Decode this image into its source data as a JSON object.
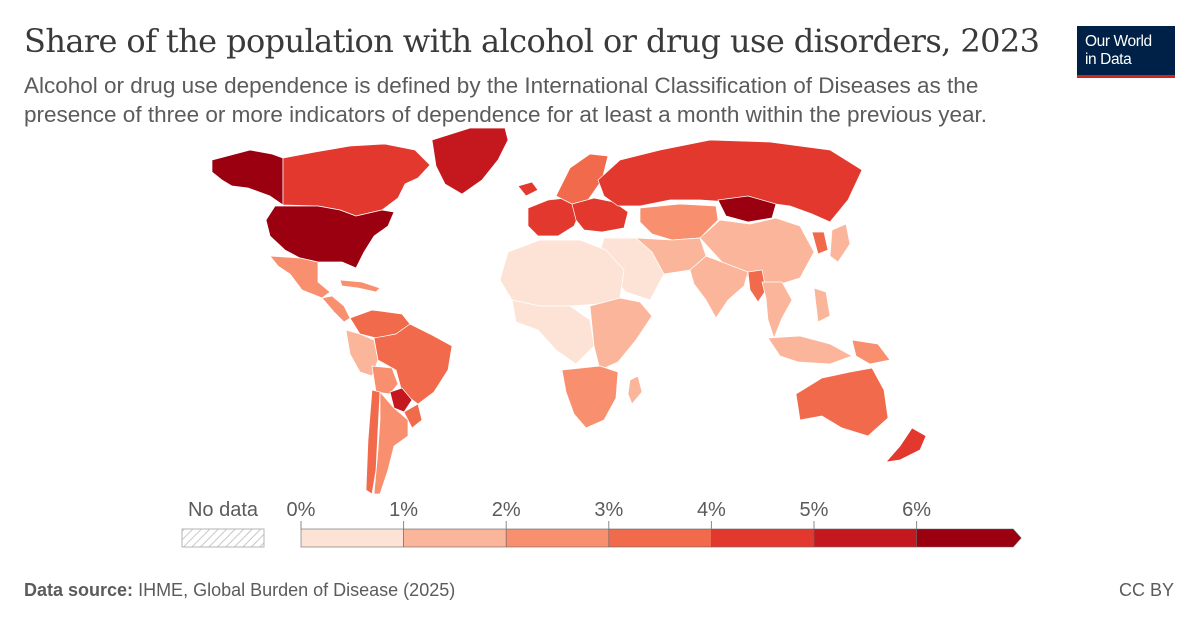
{
  "title": "Share of the population with alcohol or drug use disorders, 2023",
  "subtitle": "Alcohol or drug use dependence is defined by the International Classification of Diseases as the presence of three or more indicators of dependence for at least a month within the previous year.",
  "logo": {
    "line1": "Our World",
    "line2": "in Data",
    "bg": "#002147",
    "accent": "#ce261e"
  },
  "source_label": "Data source:",
  "source_value": "IHME, Global Burden of Disease (2025)",
  "license": "CC BY",
  "legend": {
    "no_data_label": "No data",
    "tick_labels": [
      "0%",
      "1%",
      "2%",
      "3%",
      "4%",
      "5%",
      "6%"
    ],
    "bins": [
      {
        "from": 0,
        "to": 1,
        "color": "#fde3d5"
      },
      {
        "from": 1,
        "to": 2,
        "color": "#fbb59a"
      },
      {
        "from": 2,
        "to": 3,
        "color": "#f8906f"
      },
      {
        "from": 3,
        "to": 4,
        "color": "#f16a4b"
      },
      {
        "from": 4,
        "to": 5,
        "color": "#e3382d"
      },
      {
        "from": 5,
        "to": 6,
        "color": "#c5181e"
      },
      {
        "from": 6,
        "to": null,
        "color": "#9b0010"
      }
    ]
  },
  "chart_data": {
    "type": "choropleth",
    "unit": "%",
    "regions": [
      {
        "name": "Alaska",
        "bin": 6
      },
      {
        "name": "Canada",
        "bin": 4
      },
      {
        "name": "Greenland",
        "bin": 5
      },
      {
        "name": "United States",
        "bin": 6
      },
      {
        "name": "Mexico",
        "bin": 2
      },
      {
        "name": "Central America",
        "bin": 2
      },
      {
        "name": "Caribbean",
        "bin": 2
      },
      {
        "name": "Colombia/Venezuela",
        "bin": 3
      },
      {
        "name": "Peru",
        "bin": 1
      },
      {
        "name": "Brazil",
        "bin": 3
      },
      {
        "name": "Bolivia",
        "bin": 2
      },
      {
        "name": "Paraguay",
        "bin": 5
      },
      {
        "name": "Uruguay",
        "bin": 3
      },
      {
        "name": "Chile",
        "bin": 3
      },
      {
        "name": "Argentina",
        "bin": 2
      },
      {
        "name": "Iceland",
        "bin": 4
      },
      {
        "name": "Western Europe",
        "bin": 4
      },
      {
        "name": "Scandinavia",
        "bin": 3
      },
      {
        "name": "Eastern Europe",
        "bin": 4
      },
      {
        "name": "Russia",
        "bin": 4
      },
      {
        "name": "Mongolia",
        "bin": 6
      },
      {
        "name": "Kazakhstan/Central Asia",
        "bin": 2
      },
      {
        "name": "China",
        "bin": 1
      },
      {
        "name": "Korea",
        "bin": 3
      },
      {
        "name": "Japan",
        "bin": 1
      },
      {
        "name": "Middle East",
        "bin": 0
      },
      {
        "name": "Iran/Afghanistan",
        "bin": 1
      },
      {
        "name": "South Asia",
        "bin": 1
      },
      {
        "name": "Myanmar",
        "bin": 3
      },
      {
        "name": "Southeast Asia",
        "bin": 1
      },
      {
        "name": "Philippines",
        "bin": 1
      },
      {
        "name": "Indonesia",
        "bin": 1
      },
      {
        "name": "Papua New Guinea",
        "bin": 2
      },
      {
        "name": "North Africa",
        "bin": 0
      },
      {
        "name": "West/Central Africa",
        "bin": 0
      },
      {
        "name": "East Africa",
        "bin": 1
      },
      {
        "name": "Southern Africa",
        "bin": 2
      },
      {
        "name": "Madagascar",
        "bin": 1
      },
      {
        "name": "Australia",
        "bin": 3
      },
      {
        "name": "New Zealand",
        "bin": 4
      }
    ]
  }
}
